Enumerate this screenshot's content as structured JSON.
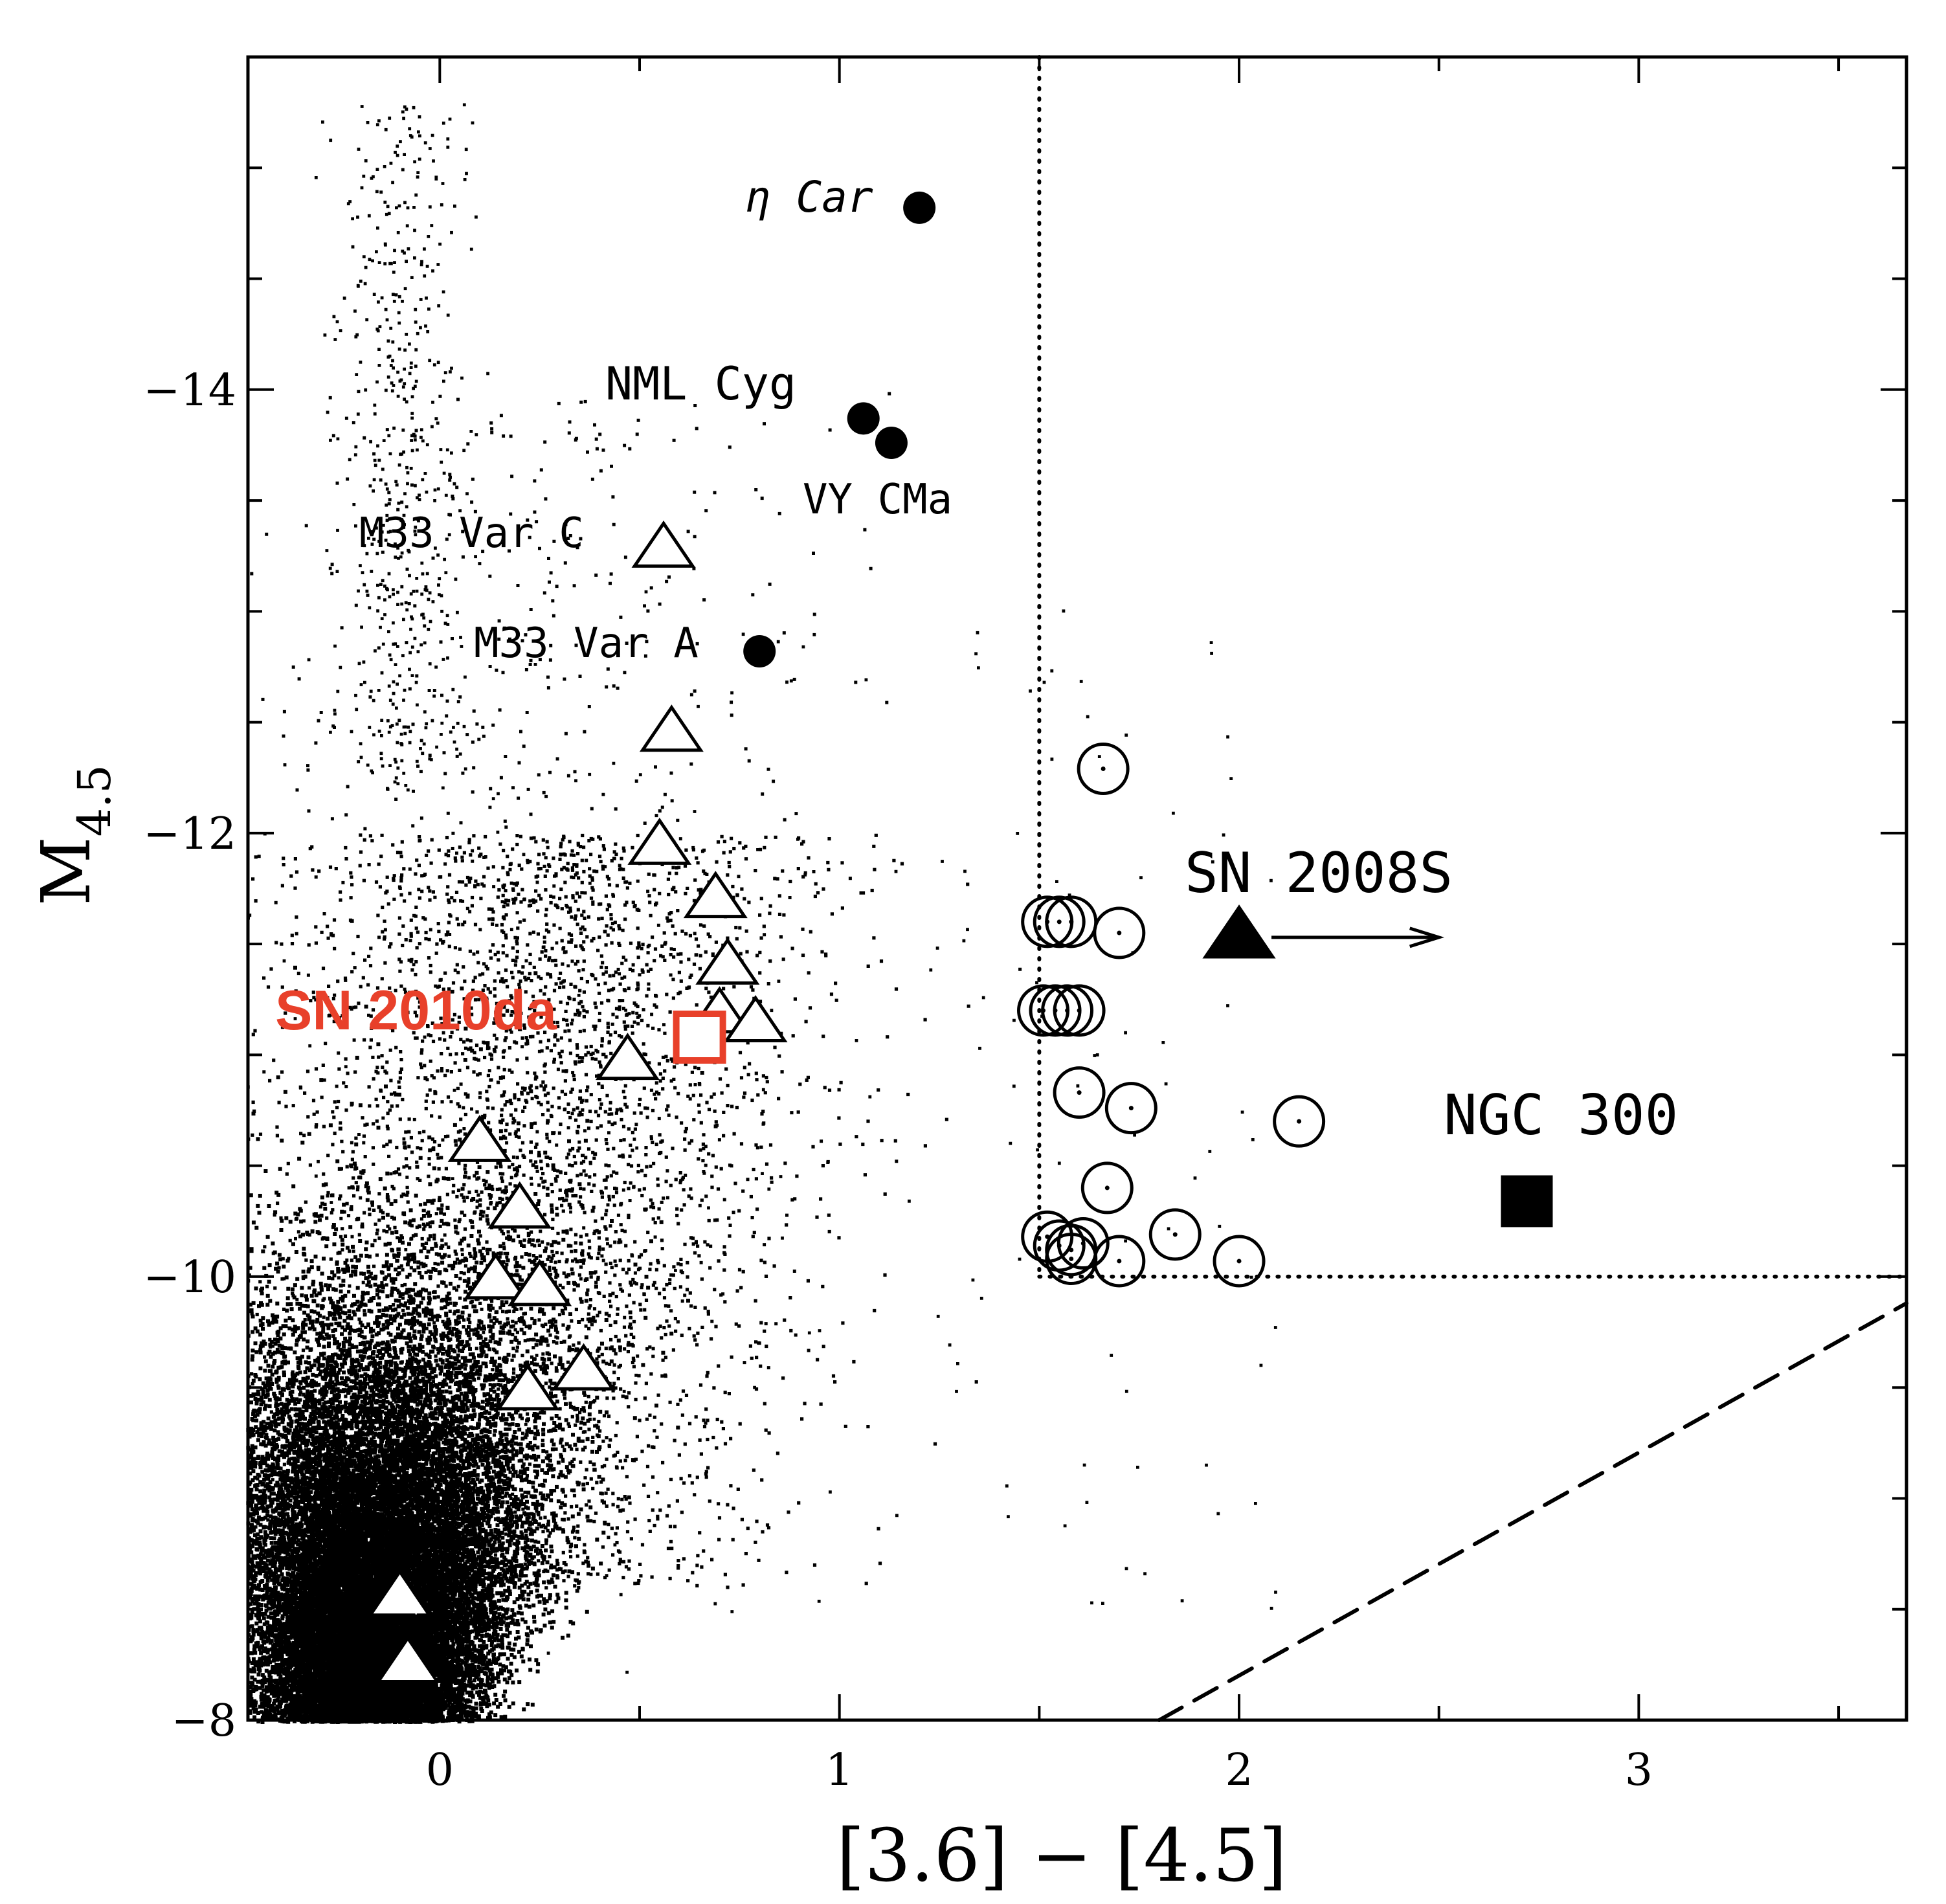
{
  "chart_data": {
    "type": "scatter",
    "title": "",
    "xlabel": "[3.6] − [4.5]",
    "ylabel": "M",
    "ylabel_subscript": "4.5",
    "xlim": [
      -0.48,
      3.67
    ],
    "ylim": [
      -8,
      -15.5
    ],
    "y_inverted": true,
    "grid": false,
    "x_ticks": [
      0,
      1,
      2,
      3
    ],
    "x_tick_labels": [
      "0",
      "1",
      "2",
      "3"
    ],
    "y_ticks": [
      -8,
      -10,
      -12,
      -14
    ],
    "y_tick_labels": [
      "−8",
      "−10",
      "−12",
      "−14"
    ],
    "colors": {
      "axes": "#000000",
      "highlight": "#e8402a",
      "marker_fill": "#ffffff"
    },
    "background_population": {
      "name": "",
      "core_center": [
        -0.2,
        -8.6
      ],
      "note_marker": "tiny black dots"
    },
    "series": [
      {
        "marker": "filled-circle",
        "points": [
          {
            "x": 1.2,
            "y": -14.82,
            "label": "η Car"
          },
          {
            "x": 1.06,
            "y": -13.87,
            "label": "NML Cyg"
          },
          {
            "x": 1.13,
            "y": -13.76,
            "label": "VY CMa"
          },
          {
            "x": 0.8,
            "y": -12.82,
            "label": "M33 Var A"
          }
        ]
      },
      {
        "marker": "open-triangle",
        "points": [
          {
            "x": 0.56,
            "y": -13.28,
            "label": "M33 Var C"
          },
          {
            "x": 0.58,
            "y": -12.45
          },
          {
            "x": 0.55,
            "y": -11.94
          },
          {
            "x": 0.69,
            "y": -11.7
          },
          {
            "x": 0.72,
            "y": -11.4
          },
          {
            "x": 0.7,
            "y": -11.18
          },
          {
            "x": 0.79,
            "y": -11.14
          },
          {
            "x": 0.47,
            "y": -10.97
          },
          {
            "x": 0.1,
            "y": -10.6
          },
          {
            "x": 0.2,
            "y": -10.3
          },
          {
            "x": 0.14,
            "y": -9.98
          },
          {
            "x": 0.25,
            "y": -9.95
          },
          {
            "x": 0.36,
            "y": -9.57
          },
          {
            "x": 0.22,
            "y": -9.48
          }
        ]
      },
      {
        "marker": "filled-triangle",
        "points": [
          {
            "x": -0.1,
            "y": -8.55
          },
          {
            "x": -0.08,
            "y": -8.25
          },
          {
            "x": 2.0,
            "y": -11.53,
            "label": "SN 2008S",
            "arrow_to_x": 2.5
          }
        ]
      },
      {
        "marker": "open-circle",
        "points": [
          {
            "x": 1.66,
            "y": -12.29
          },
          {
            "x": 1.52,
            "y": -11.6
          },
          {
            "x": 1.55,
            "y": -11.6
          },
          {
            "x": 1.58,
            "y": -11.6
          },
          {
            "x": 1.7,
            "y": -11.55
          },
          {
            "x": 1.51,
            "y": -11.2
          },
          {
            "x": 1.54,
            "y": -11.2
          },
          {
            "x": 1.57,
            "y": -11.2
          },
          {
            "x": 1.6,
            "y": -11.2
          },
          {
            "x": 1.6,
            "y": -10.83
          },
          {
            "x": 1.73,
            "y": -10.76
          },
          {
            "x": 2.15,
            "y": -10.7
          },
          {
            "x": 1.67,
            "y": -10.4
          },
          {
            "x": 1.84,
            "y": -10.19
          },
          {
            "x": 1.52,
            "y": -10.18
          },
          {
            "x": 1.55,
            "y": -10.14
          },
          {
            "x": 1.58,
            "y": -10.12
          },
          {
            "x": 1.61,
            "y": -10.15
          },
          {
            "x": 1.58,
            "y": -10.08
          },
          {
            "x": 1.7,
            "y": -10.07
          },
          {
            "x": 2.0,
            "y": -10.07
          }
        ]
      },
      {
        "marker": "filled-square",
        "points": [
          {
            "x": 2.72,
            "y": -10.34,
            "label": "NGC 300"
          }
        ]
      },
      {
        "marker": "open-square",
        "color": "#e8402a",
        "points": [
          {
            "x": 0.65,
            "y": -11.08,
            "label": "SN 2010da"
          }
        ]
      }
    ],
    "annotations": {
      "eta_car": "η Car",
      "nml_cyg": "NML Cyg",
      "vy_cma": "VY CMa",
      "m33_var_c": "M33 Var C",
      "m33_var_a": "M33 Var A",
      "sn_2008s": "SN 2008S",
      "ngc_300": "NGC 300",
      "sn_2010da": "SN 2010da"
    },
    "reference_lines": [
      {
        "style": "dotted",
        "points": [
          [
            1.5,
            -15.5
          ],
          [
            1.5,
            -10
          ]
        ]
      },
      {
        "style": "dotted",
        "points": [
          [
            1.5,
            -10
          ],
          [
            3.67,
            -10
          ]
        ]
      },
      {
        "style": "dashed",
        "points": [
          [
            1.8,
            -8
          ],
          [
            3.67,
            -9.88
          ]
        ]
      }
    ]
  }
}
